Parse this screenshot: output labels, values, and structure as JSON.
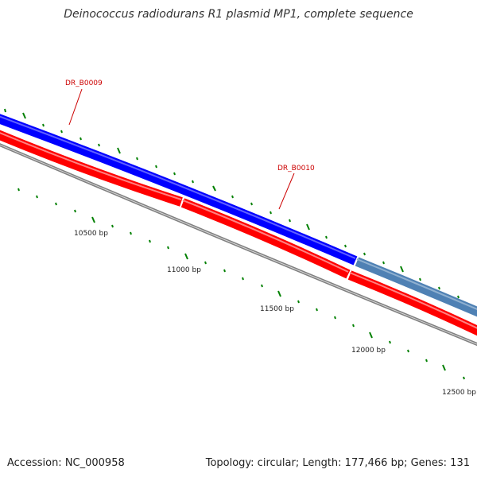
{
  "title": "Deinococcus radiodurans R1 plasmid MP1, complete sequence",
  "footer": {
    "accession": "Accession: NC_000958",
    "topology": "Topology: circular; Length: 177,466 bp; Genes: 131"
  },
  "colors": {
    "forward_gene": "#0000ff",
    "selected_gene": "#4f81b4",
    "reverse_gene": "#ff0000",
    "backbone": "#808080",
    "tick": "#008000",
    "label": "#cc0000",
    "footer_text": "#222222"
  },
  "scale_labels": [
    "10500 bp",
    "11000 bp",
    "11500 bp",
    "12000 bp",
    "12500 bp"
  ],
  "gene_labels": [
    "DR_B0009",
    "DR_B0010"
  ]
}
